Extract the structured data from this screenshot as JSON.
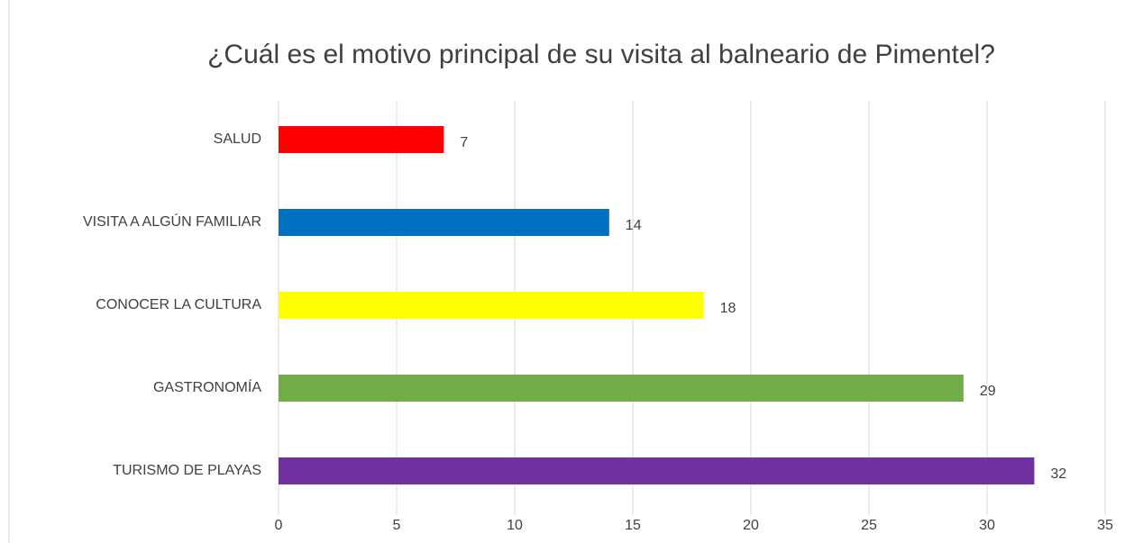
{
  "chart_data": {
    "type": "bar",
    "title": "¿Cuál es el motivo principal de su visita al balneario de Pimentel?",
    "categories": [
      "SALUD",
      "VISITA A ALGÚN FAMILIAR",
      "CONOCER LA CULTURA",
      "GASTRONOMÍA",
      "TURISMO DE PLAYAS"
    ],
    "values": [
      7,
      14,
      18,
      29,
      32
    ],
    "colors": [
      "#ff0000",
      "#0070c0",
      "#ffff00",
      "#70ad47",
      "#7030a0"
    ],
    "xlim": [
      0,
      35
    ],
    "xticks": [
      0,
      5,
      10,
      15,
      20,
      25,
      30,
      35
    ],
    "grid": true
  }
}
